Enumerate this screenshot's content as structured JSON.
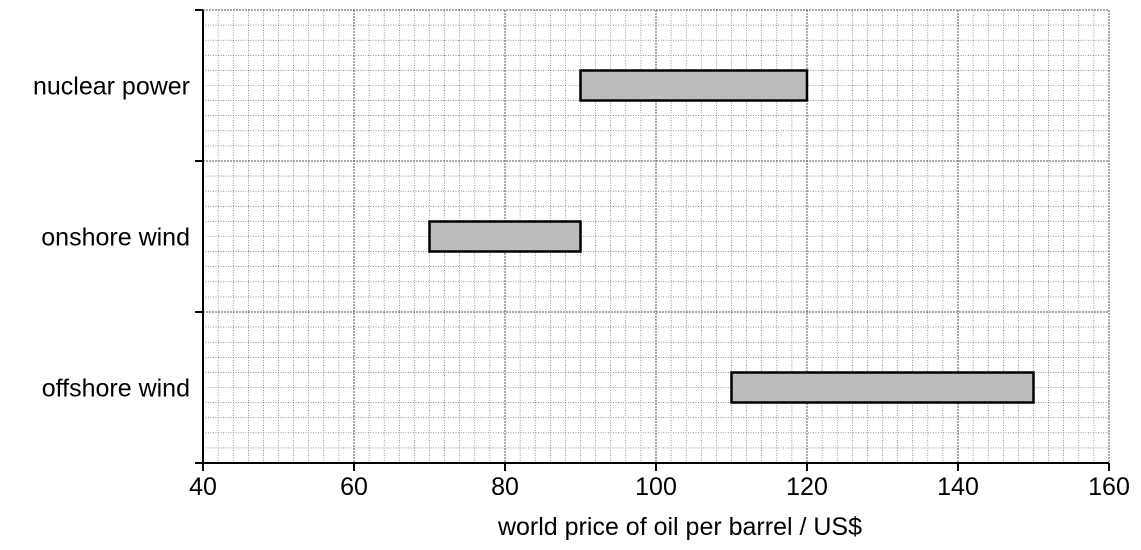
{
  "chart_data": {
    "type": "bar",
    "orientation": "horizontal",
    "title": "",
    "xlabel": "world price of oil per barrel / US$",
    "ylabel": "",
    "xlim": [
      40,
      160
    ],
    "xticks": [
      40,
      60,
      80,
      100,
      120,
      140,
      160
    ],
    "grid": true,
    "categories": [
      "nuclear power",
      "onshore wind",
      "offshore wind"
    ],
    "ranges": [
      {
        "category": "nuclear power",
        "start": 90,
        "end": 120
      },
      {
        "category": "onshore wind",
        "start": 70,
        "end": 90
      },
      {
        "category": "offshore wind",
        "start": 110,
        "end": 150
      }
    ],
    "colors": {
      "bar_fill": "#bcbcbc",
      "bar_stroke": "#000000",
      "grid": "#555555"
    }
  }
}
